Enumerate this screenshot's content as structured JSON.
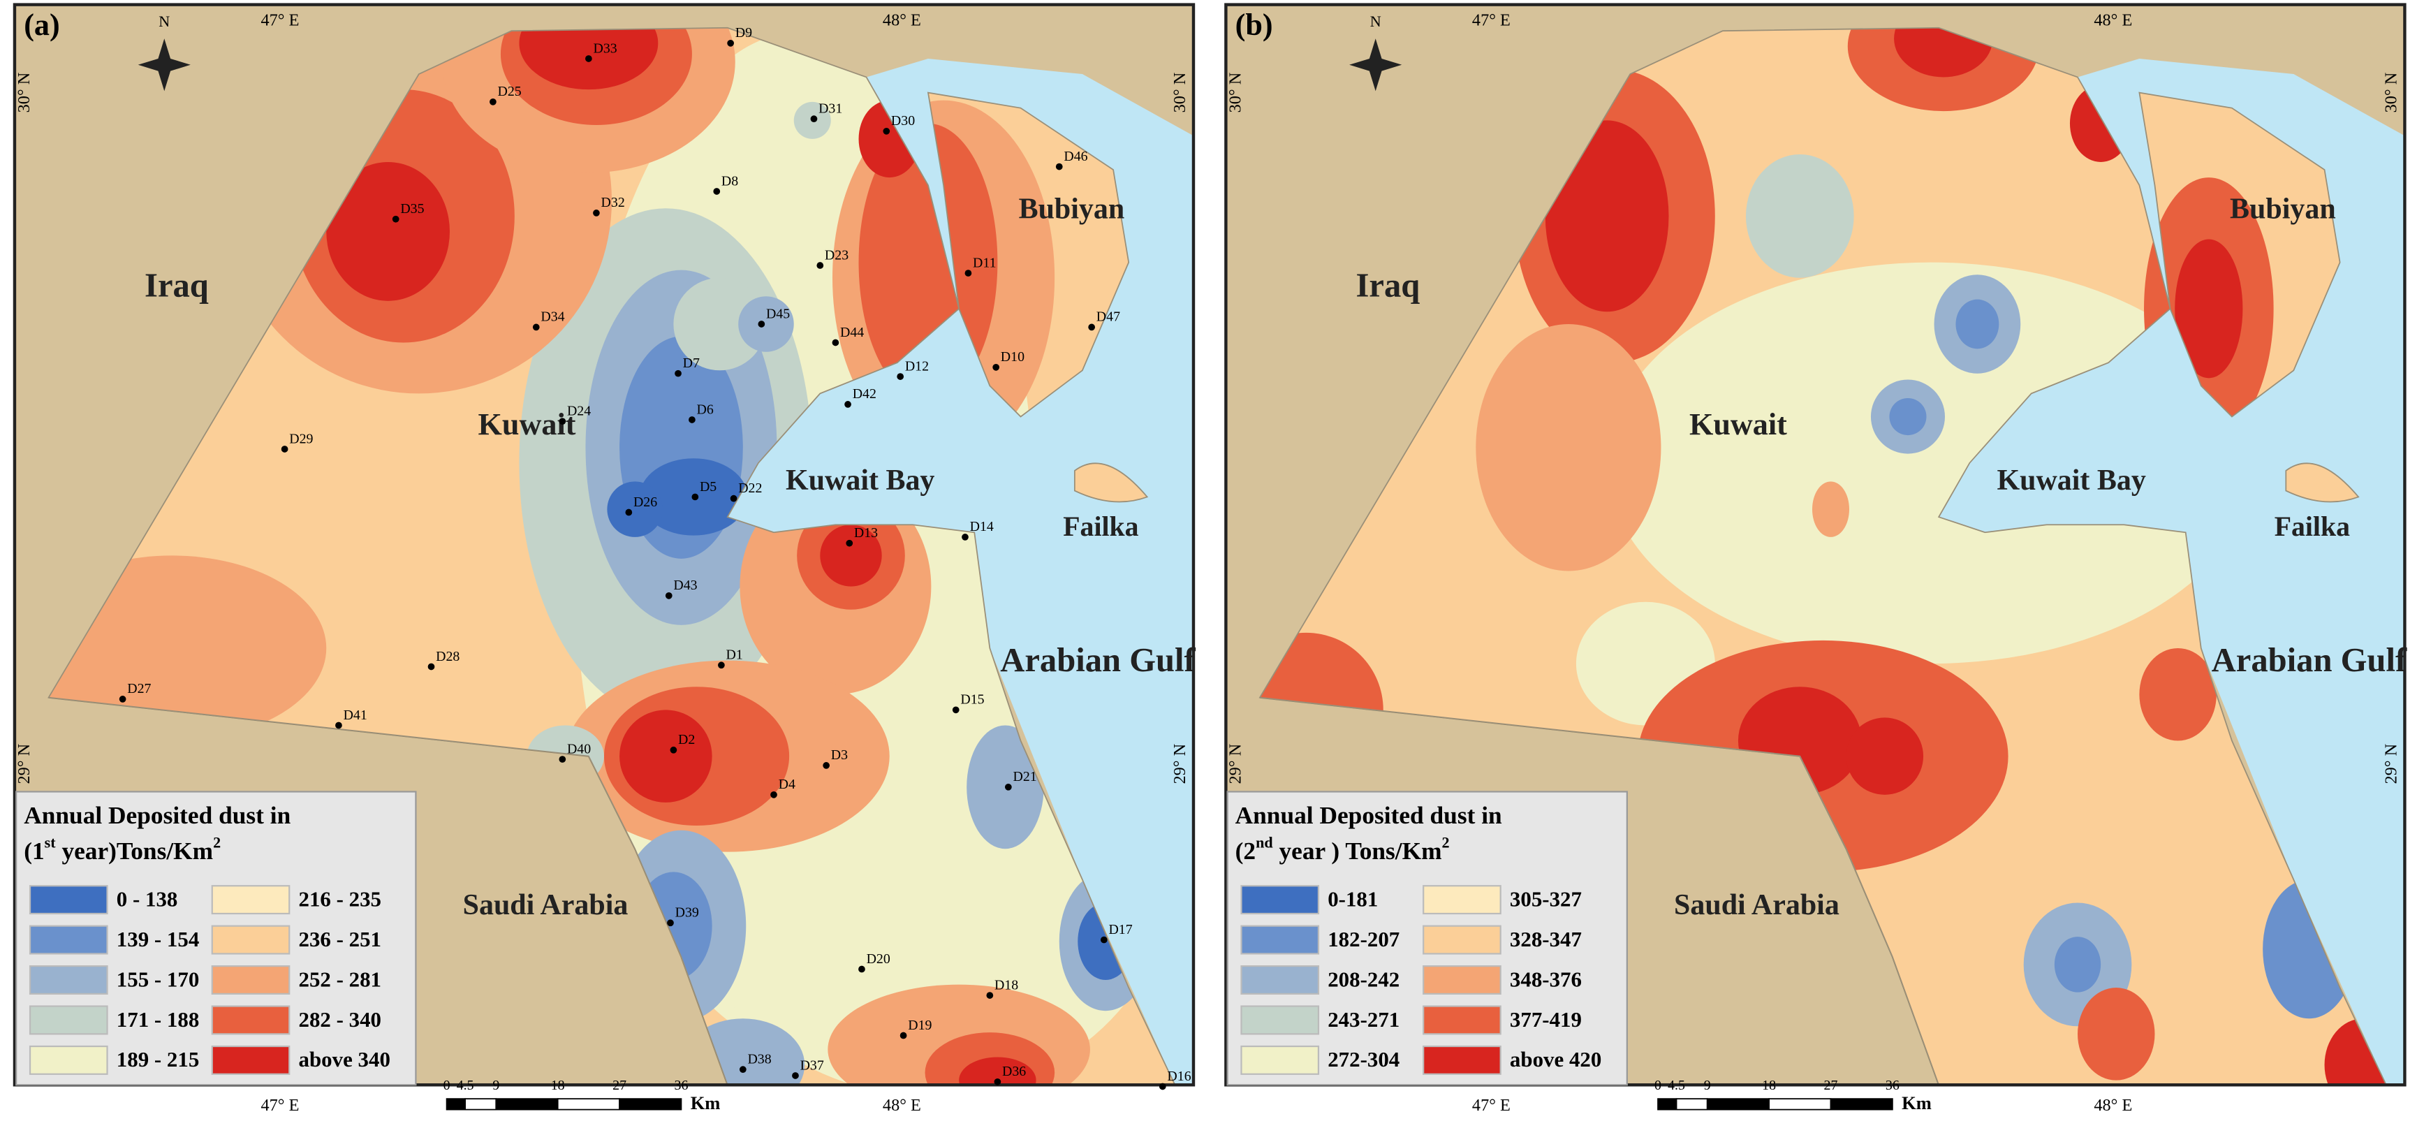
{
  "panels": [
    {
      "label": "(a)",
      "legend": {
        "title": "Annual Deposited dust in",
        "subtitle_parts": [
          "(1",
          "st",
          " year)Tons/Km",
          "2"
        ],
        "items": [
          {
            "label": "0 - 138",
            "color": "#3e6fc0"
          },
          {
            "label": "139 - 154",
            "color": "#6a91cc"
          },
          {
            "label": "155 - 170",
            "color": "#99b2cf"
          },
          {
            "label": "171 - 188",
            "color": "#c3d3c9"
          },
          {
            "label": "189 - 215",
            "color": "#f1f1c8"
          },
          {
            "label": "216 - 235",
            "color": "#fdeabd"
          },
          {
            "label": "236 - 251",
            "color": "#fbcf98"
          },
          {
            "label": "252 - 281",
            "color": "#f4a574"
          },
          {
            "label": "282 - 340",
            "color": "#e8603e"
          },
          {
            "label": "above 340",
            "color": "#d8251f"
          }
        ]
      },
      "stations": [
        "D33",
        "D9",
        "D25",
        "D31",
        "D30",
        "D46",
        "D35",
        "D32",
        "D8",
        "D23",
        "D11",
        "D34",
        "D45",
        "D44",
        "D47",
        "D7",
        "D12",
        "D10",
        "D42",
        "D24",
        "D6",
        "D29",
        "D26",
        "D5",
        "D22",
        "D13",
        "D14",
        "D43",
        "D1",
        "D28",
        "D15",
        "D27",
        "D41",
        "D40",
        "D2",
        "D3",
        "D4",
        "D21",
        "D39",
        "D20",
        "D17",
        "D18",
        "D19",
        "D38",
        "D37",
        "D36",
        "D16"
      ]
    },
    {
      "label": "(b)",
      "legend": {
        "title": "Annual Deposited dust in",
        "subtitle_parts": [
          "(2",
          "nd",
          " year ) Tons/Km",
          "2"
        ],
        "items": [
          {
            "label": "0-181",
            "color": "#3e6fc0"
          },
          {
            "label": "182-207",
            "color": "#6a91cc"
          },
          {
            "label": "208-242",
            "color": "#99b2cf"
          },
          {
            "label": "243-271",
            "color": "#c3d3c9"
          },
          {
            "label": "272-304",
            "color": "#f1f1c8"
          },
          {
            "label": "305-327",
            "color": "#fdeabd"
          },
          {
            "label": "328-347",
            "color": "#fbcf98"
          },
          {
            "label": "348-376",
            "color": "#f4a574"
          },
          {
            "label": "377-419",
            "color": "#e8603e"
          },
          {
            "label": "above 420",
            "color": "#d8251f"
          }
        ]
      }
    }
  ],
  "places": [
    "Iraq",
    "Kuwait",
    "Kuwait Bay",
    "Bubiyan",
    "Failka",
    "Arabian Gulf",
    "Saudi Arabia"
  ],
  "graticule": {
    "lon": [
      "47° E",
      "48° E"
    ],
    "lat": [
      "30° N",
      "29° N"
    ]
  },
  "north": "N",
  "scale": {
    "ticks": [
      "0",
      "4.5",
      "9",
      "18",
      "27",
      "36"
    ],
    "unit": "Km"
  }
}
